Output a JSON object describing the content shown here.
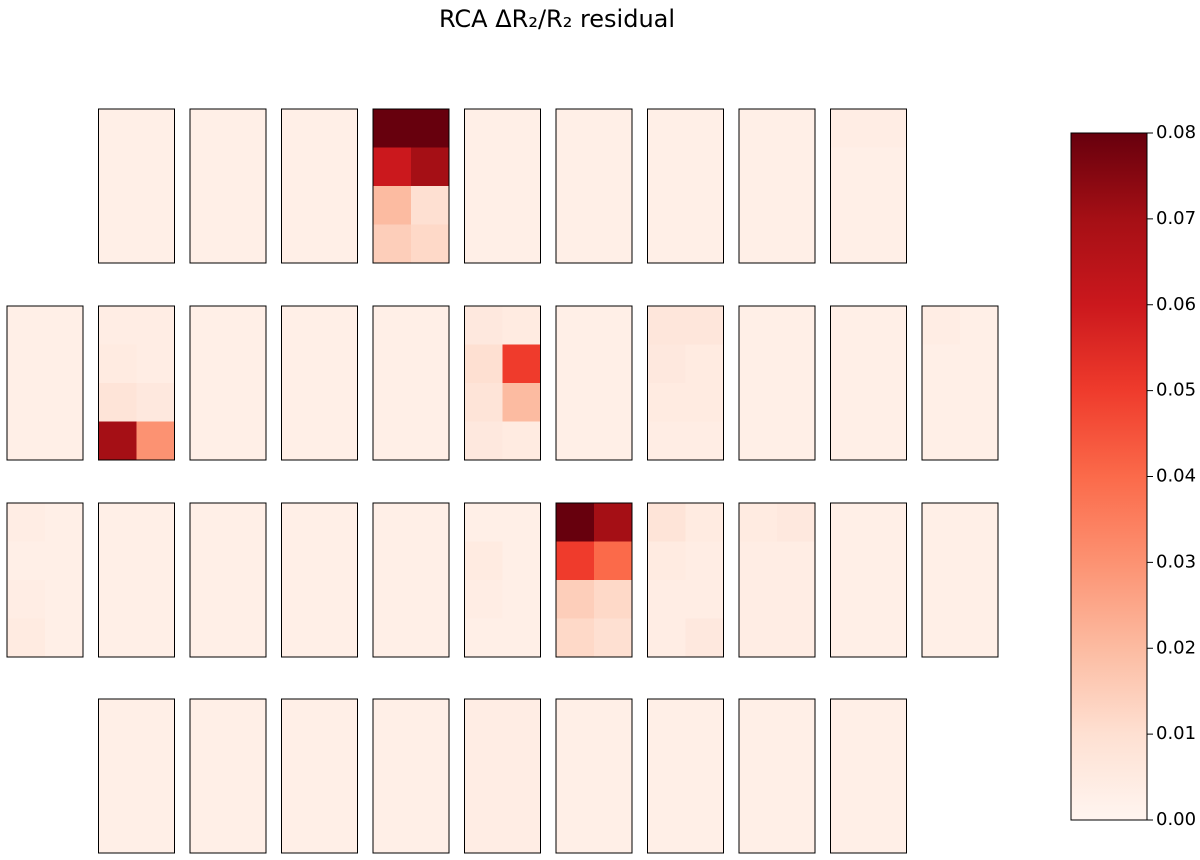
{
  "chart_data": {
    "type": "heatmap-grid",
    "title": "RCA ΔR₂/R₂ residual",
    "colormap": "Reds",
    "clim": [
      0,
      0.08
    ],
    "cticks": [
      {
        "value": 0,
        "label": "0.00"
      },
      0.01,
      0.02,
      0.03,
      0.04,
      0.05,
      0.06,
      0.07,
      0.08
    ],
    "panels": [
      [
        [
          [
            0.003,
            0.003
          ],
          [
            0.003,
            0.003
          ],
          [
            0.003,
            0.003
          ],
          [
            0.003,
            0.003
          ]
        ],
        [
          [
            0.003,
            0.003
          ],
          [
            0.003,
            0.003
          ],
          [
            0.003,
            0.003
          ],
          [
            0.003,
            0.003
          ]
        ],
        [
          [
            0.003,
            0.003
          ],
          [
            0.003,
            0.003
          ],
          [
            0.003,
            0.003
          ],
          [
            0.003,
            0.003
          ]
        ],
        [
          [
            0.08,
            0.08
          ],
          [
            0.06,
            0.07
          ],
          [
            0.02,
            0.01
          ],
          [
            0.015,
            0.012
          ]
        ],
        [
          [
            0.003,
            0.003
          ],
          [
            0.003,
            0.003
          ],
          [
            0.003,
            0.003
          ],
          [
            0.003,
            0.003
          ]
        ],
        [
          [
            0.003,
            0.003
          ],
          [
            0.003,
            0.003
          ],
          [
            0.003,
            0.003
          ],
          [
            0.003,
            0.003
          ]
        ],
        [
          [
            0.003,
            0.003
          ],
          [
            0.003,
            0.003
          ],
          [
            0.003,
            0.003
          ],
          [
            0.003,
            0.003
          ]
        ],
        [
          [
            0.003,
            0.003
          ],
          [
            0.003,
            0.003
          ],
          [
            0.003,
            0.003
          ],
          [
            0.003,
            0.003
          ]
        ],
        [
          [
            0.004,
            0.004
          ],
          [
            0.003,
            0.003
          ],
          [
            0.003,
            0.003
          ],
          [
            0.003,
            0.003
          ]
        ]
      ],
      [
        [
          [
            0.003,
            0.003
          ],
          [
            0.003,
            0.003
          ],
          [
            0.003,
            0.003
          ],
          [
            0.003,
            0.003
          ]
        ],
        [
          [
            0.004,
            0.004
          ],
          [
            0.005,
            0.004
          ],
          [
            0.008,
            0.006
          ],
          [
            0.07,
            0.03
          ]
        ],
        [
          [
            0.003,
            0.003
          ],
          [
            0.003,
            0.003
          ],
          [
            0.003,
            0.003
          ],
          [
            0.003,
            0.003
          ]
        ],
        [
          [
            0.003,
            0.003
          ],
          [
            0.003,
            0.003
          ],
          [
            0.003,
            0.003
          ],
          [
            0.003,
            0.003
          ]
        ],
        [
          [
            0.003,
            0.003
          ],
          [
            0.003,
            0.003
          ],
          [
            0.003,
            0.003
          ],
          [
            0.003,
            0.003
          ]
        ],
        [
          [
            0.006,
            0.005
          ],
          [
            0.01,
            0.05
          ],
          [
            0.008,
            0.02
          ],
          [
            0.006,
            0.005
          ]
        ],
        [
          [
            0.003,
            0.003
          ],
          [
            0.003,
            0.003
          ],
          [
            0.003,
            0.003
          ],
          [
            0.003,
            0.003
          ]
        ],
        [
          [
            0.007,
            0.007
          ],
          [
            0.006,
            0.005
          ],
          [
            0.005,
            0.005
          ],
          [
            0.004,
            0.004
          ]
        ],
        [
          [
            0.003,
            0.003
          ],
          [
            0.003,
            0.003
          ],
          [
            0.003,
            0.003
          ],
          [
            0.003,
            0.003
          ]
        ],
        [
          [
            0.003,
            0.003
          ],
          [
            0.003,
            0.003
          ],
          [
            0.003,
            0.003
          ],
          [
            0.003,
            0.003
          ]
        ],
        [
          [
            0.004,
            0.003
          ],
          [
            0.003,
            0.003
          ],
          [
            0.003,
            0.003
          ],
          [
            0.003,
            0.003
          ]
        ]
      ],
      [
        [
          [
            0.004,
            0.003
          ],
          [
            0.003,
            0.003
          ],
          [
            0.004,
            0.003
          ],
          [
            0.005,
            0.003
          ]
        ],
        [
          [
            0.003,
            0.003
          ],
          [
            0.003,
            0.003
          ],
          [
            0.003,
            0.003
          ],
          [
            0.003,
            0.003
          ]
        ],
        [
          [
            0.003,
            0.003
          ],
          [
            0.003,
            0.003
          ],
          [
            0.003,
            0.003
          ],
          [
            0.003,
            0.003
          ]
        ],
        [
          [
            0.003,
            0.003
          ],
          [
            0.003,
            0.003
          ],
          [
            0.003,
            0.003
          ],
          [
            0.003,
            0.003
          ]
        ],
        [
          [
            0.003,
            0.003
          ],
          [
            0.003,
            0.003
          ],
          [
            0.003,
            0.003
          ],
          [
            0.003,
            0.003
          ]
        ],
        [
          [
            0.003,
            0.003
          ],
          [
            0.005,
            0.003
          ],
          [
            0.004,
            0.003
          ],
          [
            0.003,
            0.003
          ]
        ],
        [
          [
            0.08,
            0.07
          ],
          [
            0.05,
            0.04
          ],
          [
            0.015,
            0.012
          ],
          [
            0.012,
            0.01
          ]
        ],
        [
          [
            0.008,
            0.005
          ],
          [
            0.005,
            0.004
          ],
          [
            0.004,
            0.004
          ],
          [
            0.004,
            0.006
          ]
        ],
        [
          [
            0.005,
            0.006
          ],
          [
            0.004,
            0.004
          ],
          [
            0.004,
            0.004
          ],
          [
            0.004,
            0.004
          ]
        ],
        [
          [
            0.003,
            0.003
          ],
          [
            0.003,
            0.003
          ],
          [
            0.003,
            0.003
          ],
          [
            0.003,
            0.003
          ]
        ],
        [
          [
            0.003,
            0.003
          ],
          [
            0.003,
            0.003
          ],
          [
            0.003,
            0.003
          ],
          [
            0.003,
            0.003
          ]
        ]
      ],
      [
        [
          [
            0.003,
            0.003
          ],
          [
            0.003,
            0.003
          ],
          [
            0.003,
            0.003
          ],
          [
            0.003,
            0.003
          ]
        ],
        [
          [
            0.003,
            0.003
          ],
          [
            0.003,
            0.003
          ],
          [
            0.003,
            0.003
          ],
          [
            0.003,
            0.003
          ]
        ],
        [
          [
            0.003,
            0.003
          ],
          [
            0.003,
            0.003
          ],
          [
            0.003,
            0.003
          ],
          [
            0.003,
            0.003
          ]
        ],
        [
          [
            0.003,
            0.003
          ],
          [
            0.003,
            0.003
          ],
          [
            0.003,
            0.003
          ],
          [
            0.003,
            0.003
          ]
        ],
        [
          [
            0.004,
            0.004
          ],
          [
            0.004,
            0.004
          ],
          [
            0.004,
            0.004
          ],
          [
            0.004,
            0.004
          ]
        ],
        [
          [
            0.003,
            0.003
          ],
          [
            0.003,
            0.003
          ],
          [
            0.003,
            0.003
          ],
          [
            0.003,
            0.003
          ]
        ],
        [
          [
            0.003,
            0.003
          ],
          [
            0.003,
            0.003
          ],
          [
            0.003,
            0.003
          ],
          [
            0.003,
            0.003
          ]
        ],
        [
          [
            0.003,
            0.003
          ],
          [
            0.003,
            0.003
          ],
          [
            0.003,
            0.003
          ],
          [
            0.003,
            0.003
          ]
        ],
        [
          [
            0.003,
            0.003
          ],
          [
            0.003,
            0.003
          ],
          [
            0.003,
            0.003
          ],
          [
            0.003,
            0.003
          ]
        ]
      ]
    ]
  }
}
